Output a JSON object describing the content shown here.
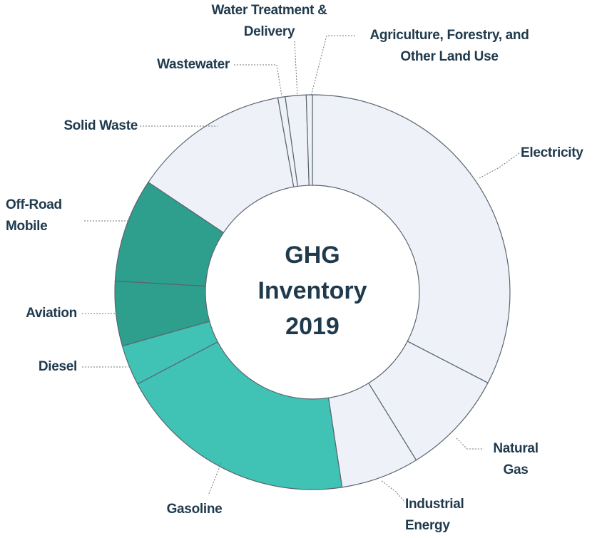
{
  "chart_data": {
    "type": "donut",
    "center_text": [
      "GHG",
      "Inventory",
      "2019"
    ],
    "categories": [
      "Electricity",
      "Natural Gas",
      "Industrial Energy",
      "Gasoline",
      "Diesel",
      "Aviation",
      "Off-Road Mobile",
      "Solid Waste",
      "Wastewater",
      "Water Treatment & Delivery",
      "Agriculture, Forestry, and Other Land Use"
    ],
    "values": [
      32.6,
      8.6,
      6.4,
      19.7,
      3.3,
      5.3,
      8.5,
      12.8,
      0.6,
      1.7,
      0.5
    ],
    "colors": [
      "#eef2f8",
      "#eef2f8",
      "#eef2f8",
      "#40c2b4",
      "#40c2b4",
      "#2e9e8d",
      "#2e9e8d",
      "#eef2f8",
      "#eef2f8",
      "#eef2f8",
      "#eef2f8"
    ]
  }
}
